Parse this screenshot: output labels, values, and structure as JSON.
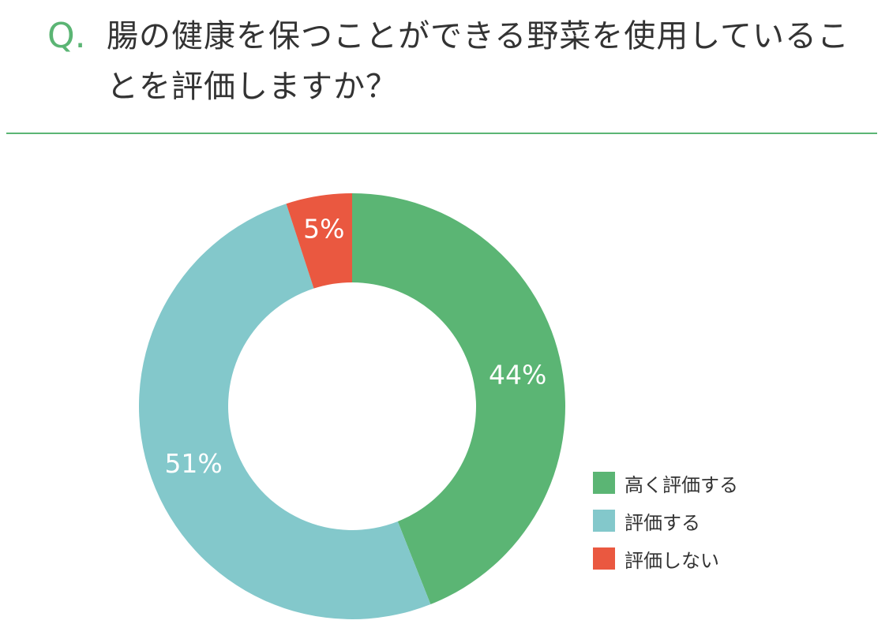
{
  "question": {
    "mark": "Q.",
    "text": "腸の健康を保つことができる野菜を使用していることを評価しますか？"
  },
  "colors": {
    "accent": "#5bb574",
    "high": "#5bb574",
    "mid": "#83c8cb",
    "low": "#ea5840"
  },
  "chart_data": {
    "type": "pie",
    "donut": true,
    "title": "",
    "categories": [
      "高く評価する",
      "評価する",
      "評価しない"
    ],
    "values": [
      44,
      51,
      5
    ],
    "labels": [
      "44%",
      "51%",
      "5%"
    ],
    "colors": [
      "#5bb574",
      "#83c8cb",
      "#ea5840"
    ],
    "start": "top",
    "direction": "clockwise",
    "legend": "right-bottom"
  }
}
